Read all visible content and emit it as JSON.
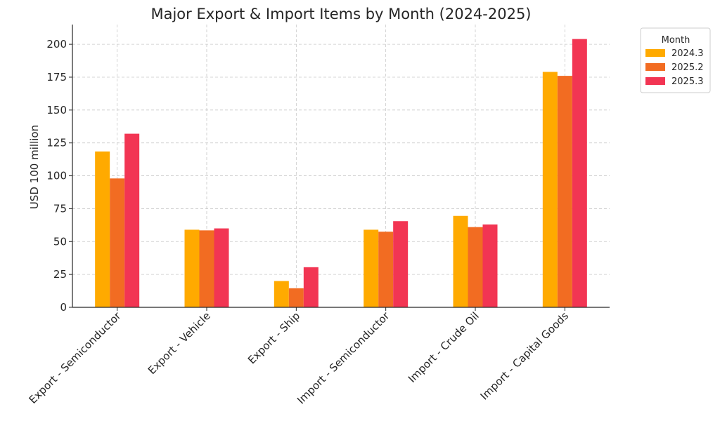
{
  "chart_data": {
    "type": "bar",
    "title": "Major Export & Import Items by Month (2024-2025)",
    "xlabel": "",
    "ylabel": "USD 100 million",
    "ylim": [
      0,
      215
    ],
    "yticks": [
      0,
      25,
      50,
      75,
      100,
      125,
      150,
      175,
      200
    ],
    "grid": true,
    "legend": {
      "title": "Month",
      "placement": "outside-top-right"
    },
    "categories": [
      "Export - Semiconductor",
      "Export - Vehicle",
      "Export - Ship",
      "Import - Semiconductor",
      "Import - Crude Oil",
      "Import - Capital Goods"
    ],
    "series": [
      {
        "name": "2024.3",
        "color": "#FFAA00",
        "values": [
          118.5,
          59,
          20,
          59,
          69.5,
          179
        ]
      },
      {
        "name": "2025.2",
        "color": "#F26C22",
        "values": [
          98,
          58.5,
          14.5,
          57.5,
          61,
          176
        ]
      },
      {
        "name": "2025.3",
        "color": "#F23553",
        "values": [
          132,
          60,
          30.5,
          65.5,
          63,
          204
        ]
      }
    ]
  }
}
